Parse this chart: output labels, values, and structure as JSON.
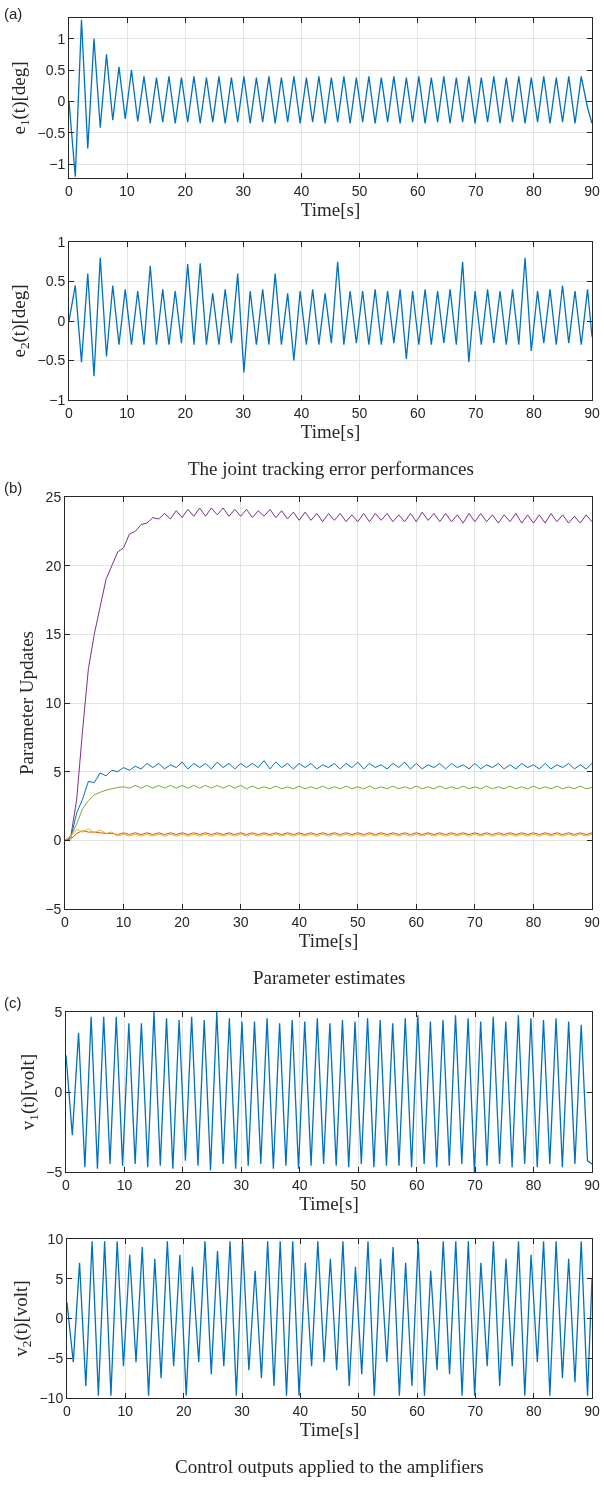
{
  "chart_data": [
    {
      "type": "line",
      "title": "(a)",
      "xlabel": "Time[s]",
      "ylabel": "e$_{1}$(t)[deg]",
      "grid": true,
      "xlim": [
        0,
        90
      ],
      "xticks": [
        0,
        10,
        20,
        30,
        40,
        50,
        60,
        70,
        80,
        90
      ],
      "ylim": [
        -1.22,
        1.33
      ],
      "yticks": [
        {
          "value": -1,
          "label": "−1"
        },
        {
          "value": -0.5,
          "label": "−0.5"
        },
        0,
        0.5,
        1
      ],
      "x": [
        0,
        1.08,
        2.15,
        3.23,
        4.3,
        5.38,
        6.45,
        7.53,
        8.6,
        9.68,
        10.75,
        11.83,
        12.9,
        13.98,
        15.05,
        16.13,
        17.2,
        18.28,
        19.35,
        20.43,
        21.5,
        22.58,
        23.65,
        24.73,
        25.8,
        26.88,
        27.95,
        29.03,
        30.1,
        31.18,
        32.25,
        33.33,
        34.4,
        35.48,
        36.55,
        37.63,
        38.7,
        39.78,
        40.85,
        41.93,
        43,
        44.08,
        45.15,
        46.23,
        47.3,
        48.38,
        49.45,
        50.53,
        51.6,
        52.68,
        53.75,
        54.83,
        55.9,
        56.98,
        58.05,
        59.13,
        60.2,
        61.28,
        62.35,
        63.43,
        64.5,
        65.58,
        66.65,
        67.73,
        68.8,
        69.88,
        70.95,
        72.03,
        73.1,
        74.18,
        75.25,
        76.33,
        77.4,
        78.48,
        79.55,
        80.63,
        81.7,
        82.78,
        83.85,
        84.93,
        86,
        87.08,
        88.15,
        89.23,
        90
      ],
      "series": [
        {
          "color": "#0072bd",
          "values": [
            0,
            -1.2,
            1.3,
            -0.75,
            1,
            -0.42,
            0.75,
            -0.3,
            0.55,
            -0.28,
            0.5,
            -0.32,
            0.4,
            -0.35,
            0.38,
            -0.33,
            0.4,
            -0.35,
            0.38,
            -0.33,
            0.4,
            -0.35,
            0.38,
            -0.33,
            0.4,
            -0.35,
            0.38,
            -0.33,
            0.4,
            -0.35,
            0.38,
            -0.33,
            0.4,
            -0.35,
            0.38,
            -0.33,
            0.4,
            -0.35,
            0.38,
            -0.33,
            0.4,
            -0.35,
            0.38,
            -0.33,
            0.4,
            -0.35,
            0.38,
            -0.33,
            0.4,
            -0.35,
            0.38,
            -0.33,
            0.4,
            -0.35,
            0.38,
            -0.33,
            0.4,
            -0.35,
            0.38,
            -0.33,
            0.4,
            -0.35,
            0.38,
            -0.33,
            0.4,
            -0.35,
            0.38,
            -0.33,
            0.4,
            -0.35,
            0.38,
            -0.33,
            0.4,
            -0.35,
            0.38,
            -0.33,
            0.4,
            -0.35,
            0.38,
            -0.33,
            0.4,
            -0.35,
            0.4,
            -0.1,
            -0.35
          ]
        }
      ]
    },
    {
      "type": "line",
      "xlabel": "Time[s]",
      "ylabel": "e$_{2}$(t)[deg]",
      "grid": true,
      "annotations": [
        "The joint tracking error performances"
      ],
      "xlim": [
        0,
        90
      ],
      "xticks": [
        0,
        10,
        20,
        30,
        40,
        50,
        60,
        70,
        80,
        90
      ],
      "ylim": [
        -1,
        1
      ],
      "yticks": [
        {
          "value": -1,
          "label": "−1"
        },
        {
          "value": -0.5,
          "label": "−0.5"
        },
        0,
        0.5,
        1
      ],
      "x": [
        0,
        1.08,
        2.15,
        3.23,
        4.3,
        5.38,
        6.45,
        7.53,
        8.6,
        9.68,
        10.75,
        11.83,
        12.9,
        13.98,
        15.05,
        16.13,
        17.2,
        18.28,
        19.35,
        20.43,
        21.5,
        22.58,
        23.65,
        24.73,
        25.8,
        26.88,
        27.95,
        29.03,
        30.1,
        31.18,
        32.25,
        33.33,
        34.4,
        35.48,
        36.55,
        37.63,
        38.7,
        39.78,
        40.85,
        41.93,
        43,
        44.08,
        45.15,
        46.23,
        47.3,
        48.38,
        49.45,
        50.53,
        51.6,
        52.68,
        53.75,
        54.83,
        55.9,
        56.98,
        58.05,
        59.13,
        60.2,
        61.28,
        62.35,
        63.43,
        64.5,
        65.58,
        66.65,
        67.73,
        68.8,
        69.88,
        70.95,
        72.03,
        73.1,
        74.18,
        75.25,
        76.33,
        77.4,
        78.48,
        79.55,
        80.63,
        81.7,
        82.78,
        83.85,
        84.93,
        86,
        87.08,
        88.15,
        89.23,
        90
      ],
      "series": [
        {
          "color": "#0072bd",
          "values": [
            0,
            0.45,
            -0.52,
            0.6,
            -0.7,
            0.8,
            -0.45,
            0.45,
            -0.3,
            0.4,
            -0.3,
            0.38,
            -0.3,
            0.7,
            -0.3,
            0.4,
            -0.3,
            0.38,
            -0.28,
            0.72,
            -0.3,
            0.73,
            -0.3,
            0.35,
            -0.3,
            0.4,
            -0.28,
            0.6,
            -0.65,
            0.38,
            -0.3,
            0.4,
            -0.3,
            0.6,
            -0.3,
            0.35,
            -0.5,
            0.38,
            -0.3,
            0.4,
            -0.3,
            0.35,
            -0.28,
            0.75,
            -0.3,
            0.38,
            -0.28,
            0.38,
            -0.3,
            0.4,
            -0.3,
            0.38,
            -0.28,
            0.4,
            -0.48,
            0.38,
            -0.3,
            0.4,
            -0.3,
            0.38,
            -0.28,
            0.4,
            -0.3,
            0.75,
            -0.52,
            0.38,
            -0.3,
            0.4,
            -0.28,
            0.38,
            -0.3,
            0.4,
            -0.3,
            0.8,
            -0.38,
            0.38,
            -0.28,
            0.4,
            -0.3,
            0.45,
            -0.28,
            0.38,
            -0.3,
            0.4,
            -0.2
          ]
        }
      ]
    },
    {
      "type": "line",
      "title": "(b)",
      "xlabel": "Time[s]",
      "ylabel": "Parameter Updates",
      "grid": true,
      "annotations": [
        "Parameter estimates"
      ],
      "xlim": [
        0,
        90
      ],
      "xticks": [
        0,
        10,
        20,
        30,
        40,
        50,
        60,
        70,
        80,
        90
      ],
      "ylim": [
        -5,
        25
      ],
      "yticks": [
        {
          "value": -5,
          "label": "−5"
        },
        0,
        5,
        10,
        15,
        20,
        25
      ],
      "x": [
        0,
        1,
        2,
        3,
        4,
        5,
        6,
        7,
        8,
        9,
        10,
        11,
        12,
        13,
        14,
        15,
        16,
        17,
        18,
        19,
        20,
        21,
        22,
        23,
        24,
        25,
        26,
        27,
        28,
        29,
        30,
        31,
        32,
        33,
        34,
        35,
        36,
        37,
        38,
        39,
        40,
        41,
        42,
        43,
        44,
        45,
        46,
        47,
        48,
        49,
        50,
        51,
        52,
        53,
        54,
        55,
        56,
        57,
        58,
        59,
        60,
        61,
        62,
        63,
        64,
        65,
        66,
        67,
        68,
        69,
        70,
        71,
        72,
        73,
        74,
        75,
        76,
        77,
        78,
        79,
        80,
        81,
        82,
        83,
        84,
        85,
        86,
        87,
        88,
        89,
        90
      ],
      "series": [
        {
          "color": "#7e2f8e",
          "values": [
            0,
            0.3,
            3,
            8,
            12.5,
            15,
            17,
            19,
            20,
            21,
            21.3,
            22.3,
            22.5,
            23,
            23.1,
            23.5,
            23.4,
            23.8,
            23.4,
            24,
            23.5,
            24.1,
            23.6,
            24.2,
            23.6,
            24.2,
            23.7,
            24.2,
            23.6,
            24.1,
            23.6,
            24.1,
            23.5,
            24,
            23.6,
            24.1,
            23.5,
            24,
            23.4,
            23.9,
            23.3,
            23.9,
            23.3,
            23.8,
            23.2,
            23.8,
            23.3,
            23.8,
            23.2,
            23.7,
            23.2,
            23.8,
            23.2,
            23.8,
            23.3,
            23.8,
            23.2,
            23.7,
            23.2,
            23.8,
            23.2,
            23.9,
            23.3,
            23.8,
            23.2,
            23.8,
            23.2,
            23.7,
            23.1,
            23.8,
            23.2,
            23.8,
            23.2,
            23.7,
            23.1,
            23.7,
            23.2,
            23.8,
            23.1,
            23.7,
            23.1,
            23.7,
            23.1,
            23.8,
            23.2,
            23.7,
            23.1,
            23.6,
            23.1,
            23.7,
            23.2
          ]
        },
        {
          "color": "#0072bd",
          "values": [
            0,
            0.2,
            2,
            3,
            4.3,
            4.2,
            4.9,
            4.7,
            5.1,
            5,
            5.3,
            5.1,
            5.4,
            5.2,
            5.6,
            5.3,
            5.6,
            5.2,
            5.5,
            5.3,
            5.7,
            5.2,
            5.6,
            5.3,
            5.6,
            5.2,
            5.7,
            5.3,
            5.6,
            5.2,
            5.6,
            5.3,
            5.6,
            5.3,
            5.8,
            5.2,
            5.7,
            5.3,
            5.6,
            5.2,
            5.6,
            5.3,
            5.6,
            5.2,
            5.5,
            5.3,
            5.6,
            5.2,
            5.6,
            5.3,
            5.7,
            5.2,
            5.6,
            5.3,
            5.5,
            5.2,
            5.6,
            5.3,
            5.7,
            5.2,
            5.6,
            5.2,
            5.5,
            5.3,
            5.6,
            5.2,
            5.6,
            5.3,
            5.5,
            5.2,
            5.6,
            5.2,
            5.5,
            5.3,
            5.6,
            5.2,
            5.5,
            5.2,
            5.6,
            5.3,
            5.5,
            5.2,
            5.6,
            5.2,
            5.5,
            5.3,
            5.6,
            5.2,
            5.5,
            5.2,
            5.6
          ]
        },
        {
          "color": "#77ac30",
          "values": [
            0,
            0.3,
            1.2,
            2.3,
            2.9,
            3.3,
            3.5,
            3.65,
            3.75,
            3.85,
            3.9,
            3.8,
            4,
            3.8,
            4,
            3.8,
            4,
            3.8,
            4,
            3.8,
            4,
            3.8,
            4,
            3.8,
            4,
            3.8,
            4,
            3.8,
            4,
            3.8,
            4,
            3.75,
            3.95,
            3.75,
            3.9,
            3.75,
            3.95,
            3.75,
            3.9,
            3.75,
            3.95,
            3.75,
            3.9,
            3.75,
            3.95,
            3.75,
            3.9,
            3.75,
            3.95,
            3.75,
            3.9,
            3.75,
            3.95,
            3.75,
            3.9,
            3.75,
            3.95,
            3.75,
            3.9,
            3.75,
            3.95,
            3.75,
            3.9,
            3.75,
            3.95,
            3.75,
            3.9,
            3.75,
            3.95,
            3.75,
            3.9,
            3.75,
            3.95,
            3.75,
            3.9,
            3.75,
            3.95,
            3.75,
            3.9,
            3.75,
            3.95,
            3.75,
            3.9,
            3.75,
            3.95,
            3.75,
            3.9,
            3.75,
            3.95,
            3.75,
            3.85
          ]
        },
        {
          "color": "#d95319",
          "values": [
            0,
            0.1,
            0.5,
            0.7,
            0.6,
            0.6,
            0.55,
            0.5,
            0.5,
            0.42,
            0.55,
            0.42,
            0.55,
            0.42,
            0.55,
            0.42,
            0.55,
            0.42,
            0.55,
            0.42,
            0.55,
            0.42,
            0.55,
            0.42,
            0.55,
            0.42,
            0.55,
            0.42,
            0.55,
            0.42,
            0.55,
            0.42,
            0.55,
            0.42,
            0.55,
            0.42,
            0.55,
            0.42,
            0.55,
            0.42,
            0.55,
            0.42,
            0.55,
            0.42,
            0.55,
            0.42,
            0.55,
            0.42,
            0.55,
            0.42,
            0.55,
            0.42,
            0.55,
            0.42,
            0.55,
            0.42,
            0.55,
            0.42,
            0.55,
            0.42,
            0.55,
            0.42,
            0.55,
            0.42,
            0.55,
            0.42,
            0.55,
            0.42,
            0.55,
            0.42,
            0.55,
            0.42,
            0.55,
            0.42,
            0.55,
            0.42,
            0.55,
            0.42,
            0.55,
            0.42,
            0.55,
            0.42,
            0.55,
            0.42,
            0.55,
            0.42,
            0.55,
            0.42,
            0.55,
            0.42,
            0.55
          ]
        },
        {
          "color": "#edb120",
          "values": [
            0,
            0.3,
            0.8,
            0.6,
            0.85,
            0.55,
            0.75,
            0.5,
            0.6,
            0.3,
            0.45,
            0.3,
            0.45,
            0.3,
            0.45,
            0.3,
            0.45,
            0.3,
            0.45,
            0.3,
            0.45,
            0.3,
            0.45,
            0.3,
            0.45,
            0.3,
            0.45,
            0.3,
            0.45,
            0.3,
            0.45,
            0.3,
            0.45,
            0.3,
            0.45,
            0.3,
            0.45,
            0.3,
            0.45,
            0.3,
            0.45,
            0.3,
            0.45,
            0.3,
            0.45,
            0.3,
            0.45,
            0.3,
            0.45,
            0.3,
            0.45,
            0.3,
            0.45,
            0.3,
            0.45,
            0.3,
            0.45,
            0.3,
            0.45,
            0.3,
            0.45,
            0.3,
            0.45,
            0.3,
            0.45,
            0.3,
            0.45,
            0.3,
            0.45,
            0.3,
            0.45,
            0.3,
            0.45,
            0.3,
            0.45,
            0.3,
            0.45,
            0.3,
            0.45,
            0.3,
            0.45,
            0.3,
            0.45,
            0.3,
            0.45,
            0.3,
            0.45,
            0.3,
            0.45,
            0.3,
            0.45
          ]
        }
      ]
    },
    {
      "type": "line",
      "title": "(c)",
      "xlabel": "Time[s]",
      "ylabel": "v$_{1}$(t)[volt]",
      "grid": true,
      "xlim": [
        0,
        90
      ],
      "xticks": [
        0,
        10,
        20,
        30,
        40,
        50,
        60,
        70,
        80,
        90
      ],
      "ylim": [
        -5,
        5
      ],
      "yticks": [
        {
          "value": -5,
          "label": "−5"
        },
        0,
        5
      ],
      "x": [
        0,
        1.08,
        2.15,
        3.23,
        4.3,
        5.38,
        6.45,
        7.53,
        8.6,
        9.68,
        10.75,
        11.83,
        12.9,
        13.98,
        15.05,
        16.13,
        17.2,
        18.28,
        19.35,
        20.43,
        21.5,
        22.58,
        23.65,
        24.73,
        25.8,
        26.88,
        27.95,
        29.03,
        30.1,
        31.18,
        32.25,
        33.33,
        34.4,
        35.48,
        36.55,
        37.63,
        38.7,
        39.78,
        40.85,
        41.93,
        43,
        44.08,
        45.15,
        46.23,
        47.3,
        48.38,
        49.45,
        50.53,
        51.6,
        52.68,
        53.75,
        54.83,
        55.9,
        56.98,
        58.05,
        59.13,
        60.2,
        61.28,
        62.35,
        63.43,
        64.5,
        65.58,
        66.65,
        67.73,
        68.8,
        69.88,
        70.95,
        72.03,
        73.1,
        74.18,
        75.25,
        76.33,
        77.4,
        78.48,
        79.55,
        80.63,
        81.7,
        82.78,
        83.85,
        84.93,
        86,
        87.08,
        88.15,
        89.23,
        90
      ],
      "series": [
        {
          "color": "#0072bd",
          "values": [
            2.3,
            -2.7,
            3.7,
            -4.7,
            4.7,
            -4.8,
            4.7,
            -4.5,
            4.7,
            -4.6,
            4.3,
            -4.5,
            4.3,
            -4.7,
            5,
            -4.6,
            4.6,
            -4.8,
            4.5,
            -4.3,
            4.7,
            -4.6,
            4.5,
            -4.9,
            5,
            -4.5,
            4.6,
            -4.8,
            4.4,
            -4.6,
            4.4,
            -4.5,
            4.6,
            -4.8,
            4.3,
            -4.6,
            4.5,
            -4.8,
            4.4,
            -4.6,
            4.6,
            -4.5,
            4.3,
            -4.6,
            4.5,
            -4.7,
            4.4,
            -4.5,
            4.6,
            -4.7,
            4.5,
            -4.6,
            4.3,
            -4.6,
            4.6,
            -4.7,
            4.8,
            -4.5,
            4.4,
            -4.7,
            4.5,
            -4.6,
            4.8,
            -4.5,
            4.6,
            -5,
            4.4,
            -4.6,
            4.7,
            -4.5,
            4.4,
            -4.7,
            4.8,
            -4.5,
            4.6,
            -4.7,
            4.5,
            -4.5,
            4.6,
            -4.7,
            4.4,
            -4.5,
            4.2,
            -4.3,
            -4.5
          ]
        }
      ]
    },
    {
      "type": "line",
      "xlabel": "Time[s]",
      "ylabel": "v$_{2}$(t)[volt]",
      "grid": true,
      "annotations": [
        "Control outputs applied to the amplifiers"
      ],
      "xlim": [
        0,
        90
      ],
      "xticks": [
        0,
        10,
        20,
        30,
        40,
        50,
        60,
        70,
        80,
        90
      ],
      "ylim": [
        -10,
        10
      ],
      "yticks": [
        {
          "value": -10,
          "label": "−10"
        },
        {
          "value": -5,
          "label": "−5"
        },
        0,
        5,
        10
      ],
      "x": [
        0,
        1.08,
        2.15,
        3.23,
        4.3,
        5.38,
        6.45,
        7.53,
        8.6,
        9.68,
        10.75,
        11.83,
        12.9,
        13.98,
        15.05,
        16.13,
        17.2,
        18.28,
        19.35,
        20.43,
        21.5,
        22.58,
        23.65,
        24.73,
        25.8,
        26.88,
        27.95,
        29.03,
        30.1,
        31.18,
        32.25,
        33.33,
        34.4,
        35.48,
        36.55,
        37.63,
        38.7,
        39.78,
        40.85,
        41.93,
        43,
        44.08,
        45.15,
        46.23,
        47.3,
        48.38,
        49.45,
        50.53,
        51.6,
        52.68,
        53.75,
        54.83,
        55.9,
        56.98,
        58.05,
        59.13,
        60.2,
        61.28,
        62.35,
        63.43,
        64.5,
        65.58,
        66.65,
        67.73,
        68.8,
        69.88,
        70.95,
        72.03,
        73.1,
        74.18,
        75.25,
        76.33,
        77.4,
        78.48,
        79.55,
        80.63,
        81.7,
        82.78,
        83.85,
        84.93,
        86,
        87.08,
        88.15,
        89.23,
        90
      ],
      "series": [
        {
          "color": "#0072bd",
          "values": [
            2,
            -5.5,
            7,
            -8.5,
            9.7,
            -9.7,
            9.7,
            -9.7,
            9.7,
            -6,
            8,
            -5.5,
            9,
            -9.7,
            7.5,
            -7.5,
            9.7,
            -6,
            8,
            -9.7,
            6.5,
            -5.5,
            9.7,
            -7,
            8.5,
            -6,
            9.7,
            -9.7,
            9.7,
            -6.5,
            6,
            -7.5,
            9.7,
            -8.5,
            9.7,
            -9.7,
            9.7,
            -9.7,
            7,
            -6,
            9.7,
            -5.5,
            7.5,
            -6.5,
            9.7,
            -8.5,
            6.5,
            -7,
            9.7,
            -9.7,
            7.5,
            -5.5,
            9,
            -9.7,
            7,
            -8.5,
            9.7,
            -9.7,
            6,
            -6.5,
            9.7,
            -7,
            9.7,
            -9.7,
            9.7,
            -9.7,
            7,
            -6,
            9.7,
            -8.5,
            7.5,
            -6,
            9.7,
            -9.7,
            8,
            -5.5,
            9.7,
            -9.7,
            9.7,
            -7.5,
            7.5,
            -8,
            9.7,
            -9.7,
            5
          ]
        }
      ]
    }
  ]
}
